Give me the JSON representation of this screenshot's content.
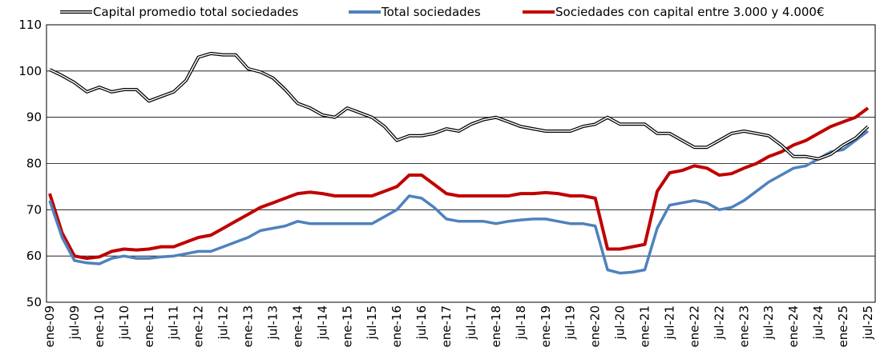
{
  "chart_data": {
    "type": "line",
    "categories": [
      "ene-09",
      null,
      "jul-09",
      null,
      "ene-10",
      null,
      "jul-10",
      null,
      "ene-11",
      null,
      "jul-11",
      null,
      "ene-12",
      null,
      "jul-12",
      null,
      "ene-13",
      null,
      "jul-13",
      null,
      "ene-14",
      null,
      "jul-14",
      null,
      "ene-15",
      null,
      "jul-15",
      null,
      "ene-16",
      null,
      "jul-16",
      null,
      "ene-17",
      null,
      "jul-17",
      null,
      "ene-18",
      null,
      "jul-18",
      null,
      "ene-19",
      null,
      "jul-19",
      null,
      "ene-20",
      null,
      "jul-20",
      null,
      "ene-21",
      null,
      "jul-21",
      null,
      "ene-22",
      null,
      "jul-22",
      null,
      "ene-23",
      null,
      "jul-23",
      null,
      "ene-24",
      null,
      "jul-24",
      null,
      "ene-25",
      null,
      "jul-25"
    ],
    "series": [
      {
        "name": "Capital promedio total sociedades",
        "color": "#000000",
        "outline": true,
        "values": [
          100.3,
          99,
          97.5,
          95.5,
          96.5,
          95.5,
          96,
          96,
          93.5,
          94.5,
          95.5,
          98,
          103,
          103.8,
          103.5,
          103.5,
          100.5,
          99.8,
          98.5,
          96,
          93,
          92,
          90.5,
          90,
          92,
          91,
          90,
          88,
          85,
          86,
          86,
          86.5,
          87.5,
          87,
          88.5,
          89.5,
          90,
          89,
          88,
          87.5,
          87,
          87,
          87,
          88,
          88.5,
          90,
          88.5,
          88.5,
          88.5,
          86.5,
          86.5,
          85,
          83.5,
          83.5,
          85,
          86.5,
          87,
          86.5,
          86,
          84,
          81.5,
          81.5,
          81,
          82,
          84,
          85.5,
          88
        ]
      },
      {
        "name": "Total sociedades",
        "color": "#4f81bd",
        "outline": false,
        "values": [
          72,
          64,
          59,
          58.5,
          58.3,
          59.5,
          60,
          59.5,
          59.5,
          59.8,
          60,
          60.5,
          61,
          61,
          62,
          63,
          64,
          65.5,
          66,
          66.5,
          67.5,
          67,
          67,
          67,
          67,
          67,
          67,
          68.5,
          70,
          73,
          72.5,
          70.5,
          68,
          67.5,
          67.5,
          67.5,
          67,
          67.5,
          67.8,
          68,
          68,
          67.5,
          67,
          67,
          66.5,
          57,
          56.3,
          56.5,
          57,
          66,
          71,
          71.5,
          72,
          71.5,
          70,
          70.5,
          72,
          74,
          76,
          77.5,
          79,
          79.5,
          81,
          82.5,
          83,
          85,
          87
        ]
      },
      {
        "name": "Sociedades con capital entre 3.000 y 4.000€",
        "color": "#c00000",
        "outline": false,
        "values": [
          73.5,
          65,
          60,
          59.5,
          59.8,
          61,
          61.5,
          61.3,
          61.5,
          62,
          62,
          63,
          64,
          64.5,
          66,
          67.5,
          69,
          70.5,
          71.5,
          72.5,
          73.5,
          73.8,
          73.5,
          73,
          73,
          73,
          73,
          74,
          75,
          77.5,
          77.5,
          75.5,
          73.5,
          73,
          73,
          73,
          73,
          73,
          73.5,
          73.5,
          73.7,
          73.5,
          73,
          73,
          72.5,
          61.5,
          61.5,
          62,
          62.5,
          74,
          78,
          78.5,
          79.5,
          79,
          77.5,
          77.8,
          79,
          80,
          81.5,
          82.5,
          84,
          85,
          86.5,
          88,
          89,
          90,
          92
        ]
      }
    ],
    "ylim": [
      50,
      110
    ],
    "yticks": [
      50,
      60,
      70,
      80,
      90,
      100,
      110
    ],
    "grid": true
  }
}
